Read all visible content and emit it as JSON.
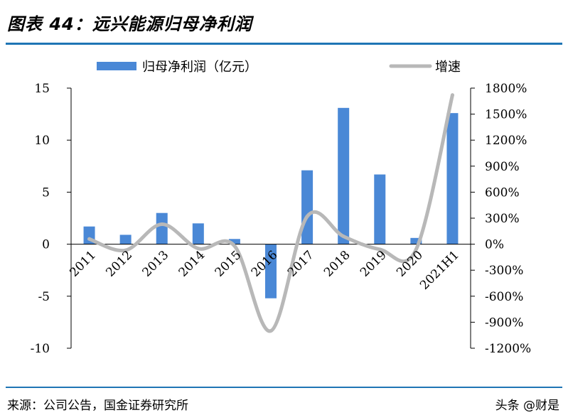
{
  "header": {
    "title": "图表 44：远兴能源归母净利润"
  },
  "footer": {
    "source": "来源：公司公告，国金证券研究所",
    "watermark": "头条 @财是"
  },
  "chart_data": {
    "type": "bar",
    "categories": [
      "2011",
      "2012",
      "2013",
      "2014",
      "2015",
      "2016",
      "2017",
      "2018",
      "2019",
      "2020",
      "2021H1"
    ],
    "series": [
      {
        "name": "归母净利润（亿元）",
        "type": "bar",
        "axis": "left",
        "color": "#4a88d6",
        "values": [
          1.7,
          0.9,
          3.0,
          2.0,
          0.5,
          -5.2,
          7.1,
          13.1,
          6.7,
          0.6,
          12.6
        ]
      },
      {
        "name": "增速",
        "type": "line",
        "axis": "right",
        "color": "#b8b8b8",
        "values": [
          60,
          -70,
          230,
          -50,
          -20,
          -1000,
          320,
          90,
          -60,
          -60,
          1720
        ]
      }
    ],
    "y_left": {
      "min": -10,
      "max": 15,
      "ticks": [
        "15",
        "10",
        "5",
        "0",
        "-5",
        "-10"
      ],
      "tick_values": [
        15,
        10,
        5,
        0,
        -5,
        -10
      ]
    },
    "y_right": {
      "min": -1200,
      "max": 1800,
      "ticks": [
        "1800%",
        "1500%",
        "1200%",
        "900%",
        "600%",
        "300%",
        "0%",
        "-300%",
        "-600%",
        "-900%",
        "-1200%"
      ],
      "tick_values": [
        1800,
        1500,
        1200,
        900,
        600,
        300,
        0,
        -300,
        -600,
        -900,
        -1200
      ]
    },
    "legend_position": "top",
    "grid": false
  }
}
